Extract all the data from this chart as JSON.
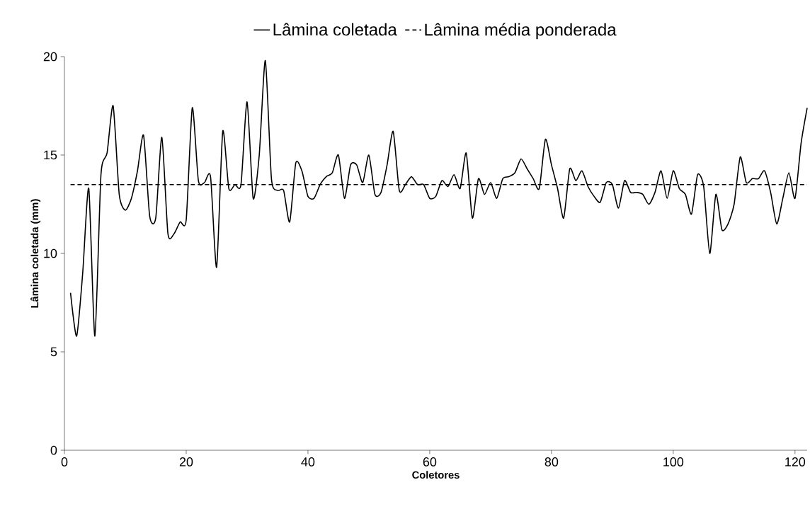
{
  "chart_data": {
    "type": "line",
    "xlabel": "Coletores",
    "ylabel": "Lâmina coletada (mm)",
    "xlim": [
      0,
      122
    ],
    "ylim": [
      0,
      20
    ],
    "xticks": [
      0,
      20,
      40,
      60,
      80,
      100,
      120
    ],
    "yticks": [
      0,
      5,
      10,
      15,
      20
    ],
    "grid": false,
    "legend": "top",
    "marker": "none",
    "series": [
      {
        "name": "Lâmina coletada",
        "color": "#000000",
        "line_style": "solid",
        "x": [
          1,
          2,
          3,
          4,
          5,
          6,
          7,
          8,
          9,
          10,
          11,
          12,
          13,
          14,
          15,
          16,
          17,
          18,
          19,
          20,
          21,
          22,
          23,
          24,
          25,
          26,
          27,
          28,
          29,
          30,
          31,
          32,
          33,
          34,
          35,
          36,
          37,
          38,
          39,
          40,
          41,
          42,
          43,
          44,
          45,
          46,
          47,
          48,
          49,
          50,
          51,
          52,
          53,
          54,
          55,
          56,
          57,
          58,
          59,
          60,
          61,
          62,
          63,
          64,
          65,
          66,
          67,
          68,
          69,
          70,
          71,
          72,
          73,
          74,
          75,
          76,
          77,
          78,
          79,
          80,
          81,
          82,
          83,
          84,
          85,
          86,
          87,
          88,
          89,
          90,
          91,
          92,
          93,
          94,
          95,
          96,
          97,
          98,
          99,
          100,
          101,
          102,
          103,
          104,
          105,
          106,
          107,
          108,
          109,
          110,
          111,
          112,
          113,
          114,
          115,
          116,
          117,
          118,
          119,
          120,
          121,
          122
        ],
        "values": [
          8.0,
          5.8,
          9.0,
          13.3,
          5.8,
          14.0,
          15.1,
          17.5,
          13.0,
          12.2,
          12.8,
          14.2,
          16.0,
          11.9,
          11.8,
          15.9,
          11.0,
          11.0,
          11.6,
          11.7,
          17.4,
          13.7,
          13.6,
          13.9,
          9.3,
          16.2,
          13.3,
          13.5,
          13.5,
          17.7,
          12.8,
          15.0,
          19.8,
          13.8,
          13.2,
          13.2,
          11.6,
          14.6,
          14.2,
          12.9,
          12.8,
          13.5,
          13.9,
          14.1,
          15.0,
          12.8,
          14.5,
          14.5,
          13.6,
          15.0,
          13.0,
          13.1,
          14.5,
          16.2,
          13.2,
          13.5,
          13.9,
          13.5,
          13.5,
          12.8,
          12.9,
          13.7,
          13.4,
          14.0,
          13.3,
          15.1,
          11.8,
          13.8,
          13.0,
          13.6,
          12.8,
          13.8,
          13.9,
          14.1,
          14.8,
          14.3,
          13.8,
          13.3,
          15.8,
          14.5,
          13.3,
          11.8,
          14.3,
          13.7,
          14.2,
          13.4,
          12.9,
          12.6,
          13.6,
          13.5,
          12.3,
          13.7,
          13.1,
          13.1,
          13.0,
          12.5,
          13.1,
          14.2,
          12.8,
          14.2,
          13.3,
          13.0,
          12.0,
          14.0,
          13.4,
          10.0,
          13.0,
          11.2,
          11.5,
          12.5,
          14.9,
          13.6,
          13.8,
          13.8,
          14.2,
          13.1,
          11.5,
          12.8,
          14.1,
          12.8,
          15.6,
          17.4
        ]
      },
      {
        "name": "Lâmina média ponderada",
        "color": "#000000",
        "line_style": "dashed",
        "x": [
          1,
          122
        ],
        "values": [
          13.5,
          13.5
        ]
      }
    ]
  }
}
